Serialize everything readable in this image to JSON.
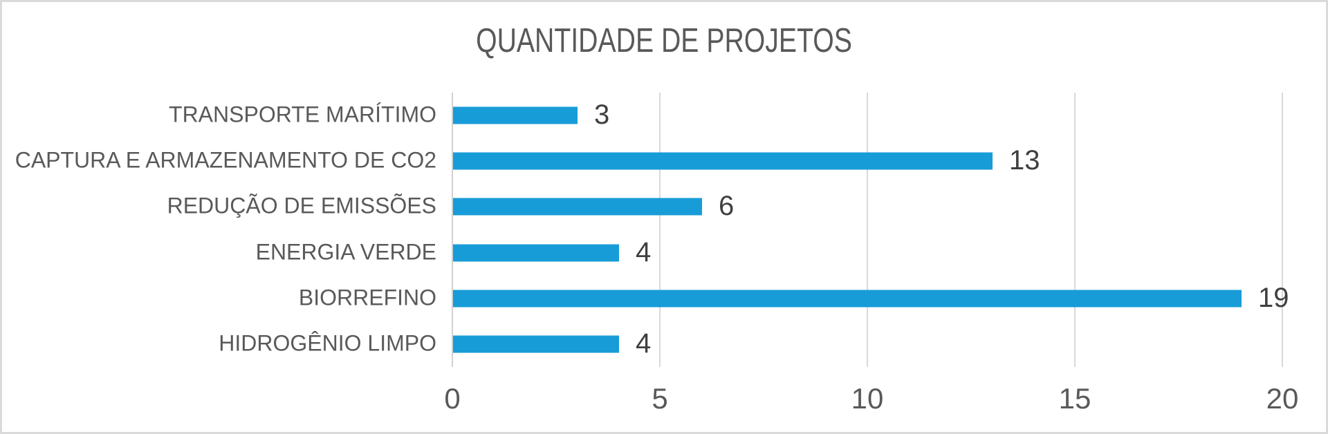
{
  "chart_data": {
    "type": "bar",
    "orientation": "horizontal",
    "title": "QUANTIDADE DE PROJETOS",
    "categories": [
      "TRANSPORTE MARÍTIMO",
      "CAPTURA E ARMAZENAMENTO DE CO2",
      "REDUÇÃO DE EMISSÕES",
      "ENERGIA VERDE",
      "BIORREFINO",
      "HIDROGÊNIO LIMPO"
    ],
    "values": [
      3,
      13,
      6,
      4,
      19,
      4
    ],
    "data_labels": [
      "3",
      "13",
      "6",
      "4",
      "19",
      "4"
    ],
    "xlabel": "",
    "ylabel": "",
    "xlim": [
      0,
      20
    ],
    "x_ticks": [
      0,
      5,
      10,
      15,
      20
    ],
    "grid": true,
    "legend": false,
    "colors": {
      "bar": "#189cd8",
      "title_text": "#595959",
      "category_text": "#595959",
      "value_text": "#3f3f3f",
      "tick_text": "#595959",
      "gridline": "#d9d9d9",
      "axis_line": "#d0d0d0",
      "frame_border": "#dadada",
      "background": "#ffffff"
    }
  }
}
